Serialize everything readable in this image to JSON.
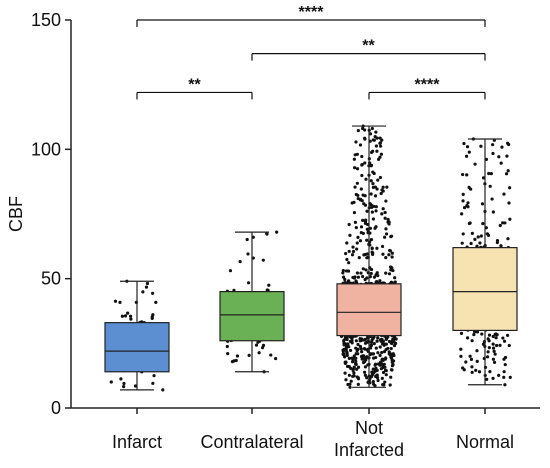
{
  "chart_data": {
    "type": "box",
    "title": "",
    "xlabel": "",
    "ylabel": "CBF",
    "ylim": [
      0,
      150
    ],
    "yticks": [
      0,
      50,
      100,
      150
    ],
    "grid": false,
    "legend": "none",
    "categories": [
      "Infarct",
      "Contralateral",
      "Not Infarcted",
      "Normal"
    ],
    "category_lines": [
      [
        "Infarct"
      ],
      [
        "Contralateral"
      ],
      [
        "Not",
        "Infarcted"
      ],
      [
        "Normal"
      ]
    ],
    "boxes": [
      {
        "category": "Infarct",
        "min": 7,
        "q1": 14,
        "median": 22,
        "q3": 33,
        "max": 49,
        "color": "#5b8fd1",
        "n_points": 60
      },
      {
        "category": "Contralateral",
        "min": 14,
        "q1": 26,
        "median": 36,
        "q3": 45,
        "max": 68,
        "color": "#6ab155",
        "n_points": 60
      },
      {
        "category": "Not Infarcted",
        "min": 8,
        "q1": 28,
        "median": 37,
        "q3": 48,
        "max": 109,
        "color": "#f0b3a2",
        "n_points": 900
      },
      {
        "category": "Normal",
        "min": 9,
        "q1": 30,
        "median": 45,
        "q3": 62,
        "max": 104,
        "color": "#f7e2b2",
        "n_points": 280
      }
    ],
    "significance": [
      {
        "from": "Infarct",
        "to": "Normal",
        "label": "****",
        "y": 150
      },
      {
        "from": "Contralateral",
        "to": "Normal",
        "label": "**",
        "y": 137
      },
      {
        "from": "Infarct",
        "to": "Contralateral",
        "label": "**",
        "y": 122
      },
      {
        "from": "Not Infarcted",
        "to": "Normal",
        "label": "****",
        "y": 122
      }
    ]
  }
}
